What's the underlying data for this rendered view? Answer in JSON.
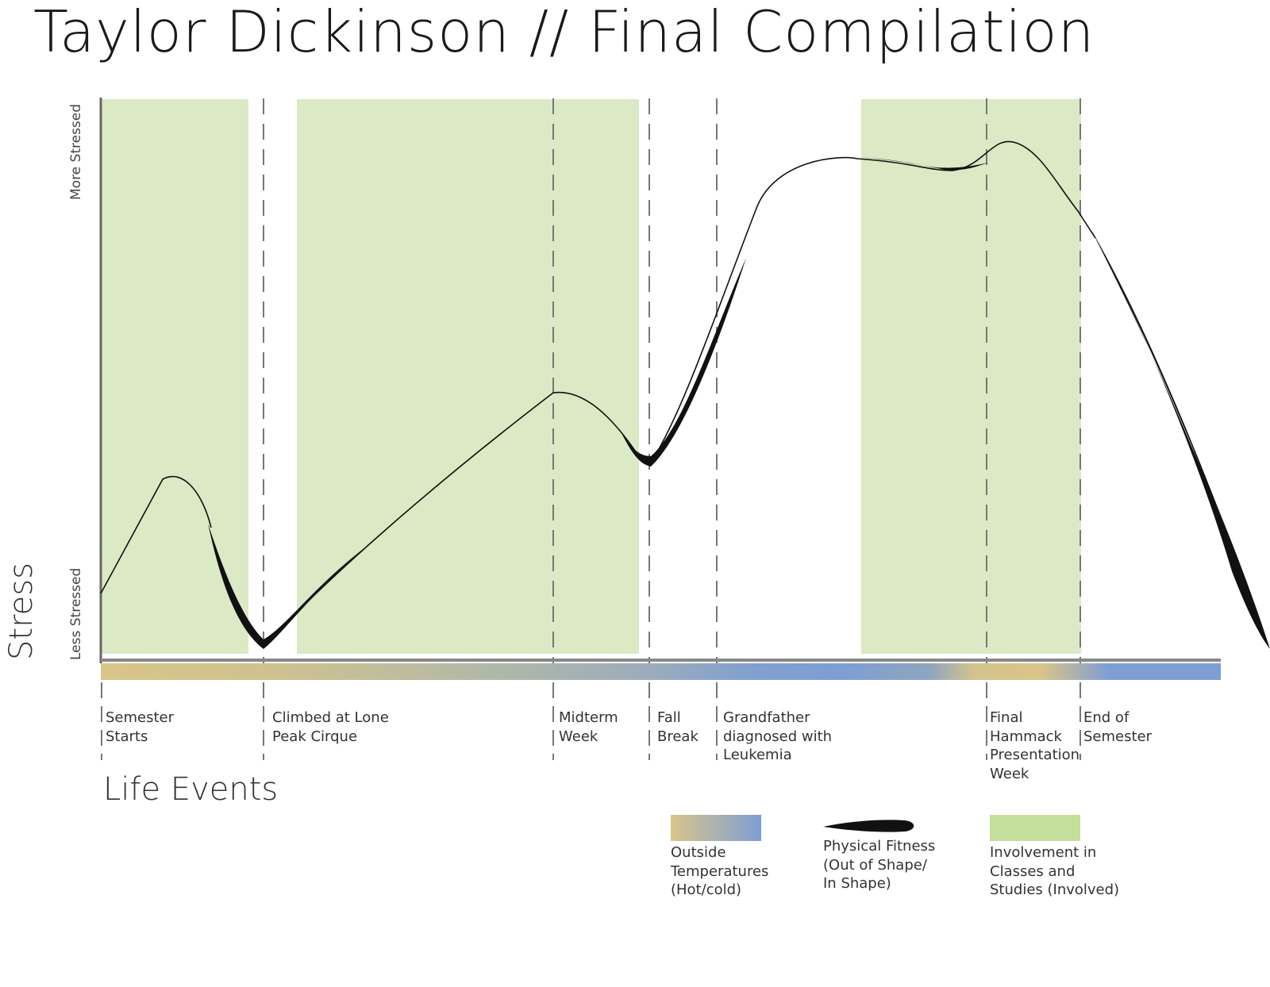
{
  "title": "Taylor Dickinson // Final Compilation",
  "chart_data": {
    "type": "line",
    "title": "Taylor Dickinson // Final Compilation",
    "ylabel": "Stress",
    "xlabel": "Life Events",
    "y_tick_labels": {
      "high": "More Stressed",
      "low": "Less Stressed"
    },
    "events": [
      {
        "label": "Semester\nStarts"
      },
      {
        "label": "Climbed at Lone\nPeak Cirque"
      },
      {
        "label": "Midterm\nWeek"
      },
      {
        "label": "Fall\nBreak"
      },
      {
        "label": "Grandfather\ndiagnosed with\nLeukemia"
      },
      {
        "label": "Final\nHammack\nPresentation\nWeek"
      },
      {
        "label": "End of\nSemester"
      }
    ],
    "series": [
      {
        "name": "Physical Fitness (Out of Shape/ In Shape)",
        "type": "stress-curve"
      },
      {
        "name": "Involvement in Classes and Studies (Involved)",
        "type": "shaded-periods"
      },
      {
        "name": "Outside Temperatures (Hot/cold)",
        "type": "gradient-bar"
      }
    ],
    "legend": [
      {
        "key": "temperature",
        "label": "Outside\nTemperatures\n(Hot/cold)"
      },
      {
        "key": "fitness",
        "label": "Physical Fitness\n(Out of Shape/\nIn Shape)"
      },
      {
        "key": "involvement",
        "label": "Involvement in\nClasses and\nStudies (Involved)"
      }
    ],
    "legend_position": "bottom-right",
    "grid": false
  },
  "colors": {
    "involvement": "#dbe9c4",
    "involvement_legend": "#c4df9a",
    "hot": "#d8c589",
    "cold": "#7e9ed4",
    "curve": "#111111",
    "axis": "#777777"
  }
}
